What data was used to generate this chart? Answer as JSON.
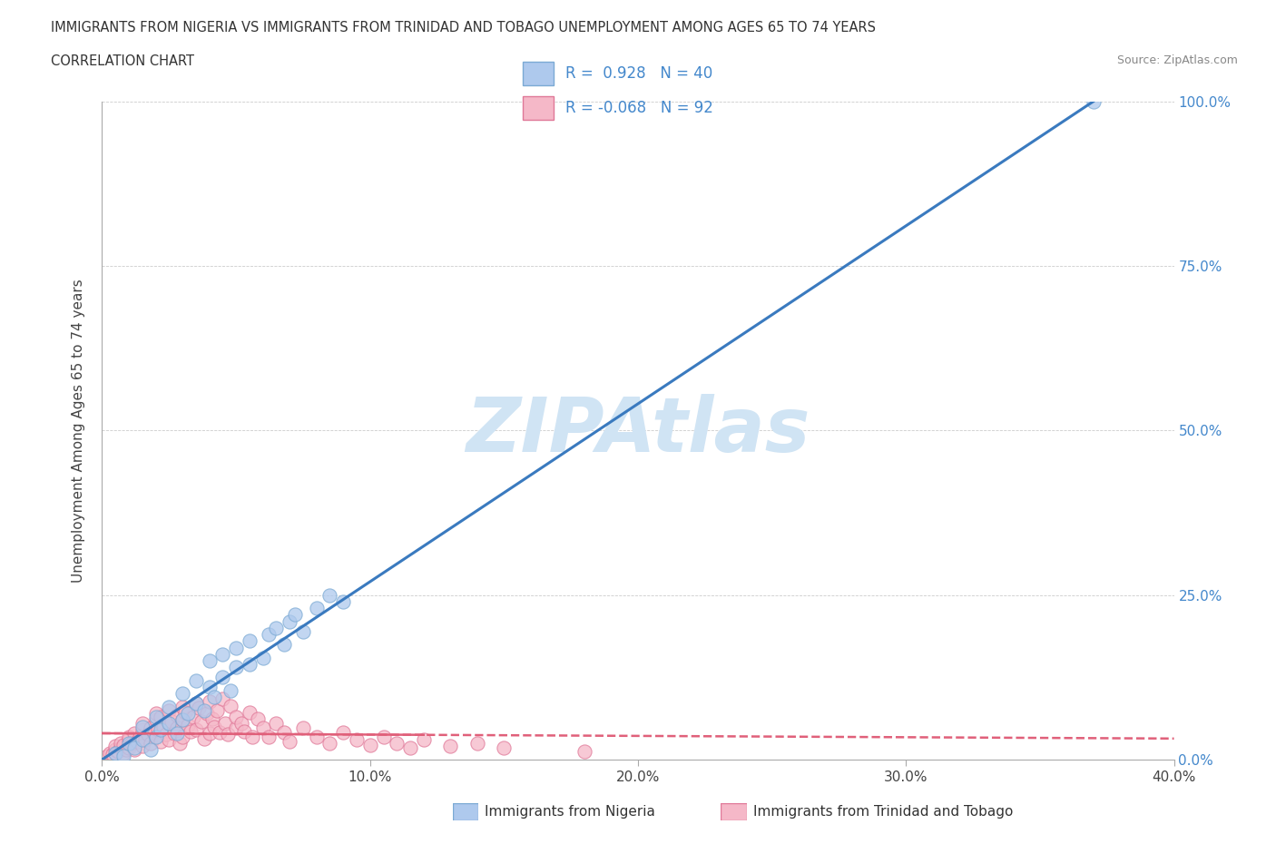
{
  "title_line1": "IMMIGRANTS FROM NIGERIA VS IMMIGRANTS FROM TRINIDAD AND TOBAGO UNEMPLOYMENT AMONG AGES 65 TO 74 YEARS",
  "title_line2": "CORRELATION CHART",
  "source_text": "Source: ZipAtlas.com",
  "ylabel": "Unemployment Among Ages 65 to 74 years",
  "xlim": [
    0.0,
    0.4
  ],
  "ylim": [
    0.0,
    1.0
  ],
  "xticks": [
    0.0,
    0.1,
    0.2,
    0.3,
    0.4
  ],
  "xticklabels": [
    "0.0%",
    "10.0%",
    "20.0%",
    "30.0%",
    "40.0%"
  ],
  "yticks": [
    0.0,
    0.25,
    0.5,
    0.75,
    1.0
  ],
  "yticklabels": [
    "0.0%",
    "25.0%",
    "50.0%",
    "75.0%",
    "100.0%"
  ],
  "nigeria_color": "#aec9ed",
  "nigeria_edge": "#7baad4",
  "trinidad_color": "#f5b8c8",
  "trinidad_edge": "#e07898",
  "nigeria_R": 0.928,
  "nigeria_N": 40,
  "trinidad_R": -0.068,
  "trinidad_N": 92,
  "nigeria_line_color": "#3a7abf",
  "trinidad_line_color": "#e0607a",
  "watermark": "ZIPAtlas",
  "watermark_color": "#d0e4f4",
  "legend_nigeria": "Immigrants from Nigeria",
  "legend_trinidad": "Immigrants from Trinidad and Tobago",
  "nigeria_scatter_x": [
    0.005,
    0.008,
    0.01,
    0.012,
    0.015,
    0.015,
    0.018,
    0.02,
    0.02,
    0.022,
    0.025,
    0.025,
    0.028,
    0.03,
    0.03,
    0.032,
    0.035,
    0.035,
    0.038,
    0.04,
    0.04,
    0.042,
    0.045,
    0.045,
    0.048,
    0.05,
    0.05,
    0.055,
    0.055,
    0.06,
    0.062,
    0.065,
    0.068,
    0.07,
    0.072,
    0.075,
    0.08,
    0.085,
    0.09,
    0.37
  ],
  "nigeria_scatter_y": [
    0.01,
    0.005,
    0.025,
    0.018,
    0.03,
    0.05,
    0.015,
    0.035,
    0.065,
    0.045,
    0.055,
    0.08,
    0.04,
    0.06,
    0.1,
    0.07,
    0.085,
    0.12,
    0.075,
    0.11,
    0.15,
    0.095,
    0.125,
    0.16,
    0.105,
    0.14,
    0.17,
    0.145,
    0.18,
    0.155,
    0.19,
    0.2,
    0.175,
    0.21,
    0.22,
    0.195,
    0.23,
    0.25,
    0.24,
    1.0
  ],
  "trinidad_scatter_x": [
    0.002,
    0.003,
    0.004,
    0.005,
    0.005,
    0.006,
    0.007,
    0.007,
    0.008,
    0.008,
    0.009,
    0.01,
    0.01,
    0.01,
    0.011,
    0.012,
    0.012,
    0.013,
    0.014,
    0.015,
    0.015,
    0.015,
    0.016,
    0.017,
    0.018,
    0.018,
    0.019,
    0.02,
    0.02,
    0.02,
    0.021,
    0.022,
    0.022,
    0.023,
    0.024,
    0.025,
    0.025,
    0.025,
    0.026,
    0.027,
    0.028,
    0.028,
    0.029,
    0.03,
    0.03,
    0.03,
    0.031,
    0.032,
    0.033,
    0.034,
    0.035,
    0.035,
    0.036,
    0.037,
    0.038,
    0.039,
    0.04,
    0.04,
    0.041,
    0.042,
    0.043,
    0.044,
    0.045,
    0.046,
    0.047,
    0.048,
    0.05,
    0.05,
    0.052,
    0.053,
    0.055,
    0.056,
    0.058,
    0.06,
    0.062,
    0.065,
    0.068,
    0.07,
    0.075,
    0.08,
    0.085,
    0.09,
    0.095,
    0.1,
    0.105,
    0.11,
    0.115,
    0.12,
    0.13,
    0.14,
    0.15,
    0.18
  ],
  "trinidad_scatter_y": [
    0.005,
    0.01,
    0.008,
    0.015,
    0.02,
    0.012,
    0.018,
    0.025,
    0.01,
    0.022,
    0.015,
    0.03,
    0.018,
    0.035,
    0.025,
    0.04,
    0.015,
    0.028,
    0.035,
    0.045,
    0.02,
    0.055,
    0.03,
    0.038,
    0.048,
    0.025,
    0.042,
    0.06,
    0.035,
    0.07,
    0.045,
    0.028,
    0.065,
    0.05,
    0.038,
    0.075,
    0.055,
    0.03,
    0.058,
    0.04,
    0.068,
    0.048,
    0.025,
    0.08,
    0.06,
    0.035,
    0.072,
    0.052,
    0.043,
    0.065,
    0.085,
    0.045,
    0.078,
    0.058,
    0.032,
    0.07,
    0.088,
    0.04,
    0.062,
    0.05,
    0.075,
    0.042,
    0.092,
    0.055,
    0.038,
    0.082,
    0.048,
    0.065,
    0.055,
    0.043,
    0.072,
    0.035,
    0.062,
    0.048,
    0.035,
    0.055,
    0.042,
    0.028,
    0.048,
    0.035,
    0.025,
    0.042,
    0.03,
    0.022,
    0.035,
    0.025,
    0.018,
    0.03,
    0.02,
    0.025,
    0.018,
    0.012
  ]
}
